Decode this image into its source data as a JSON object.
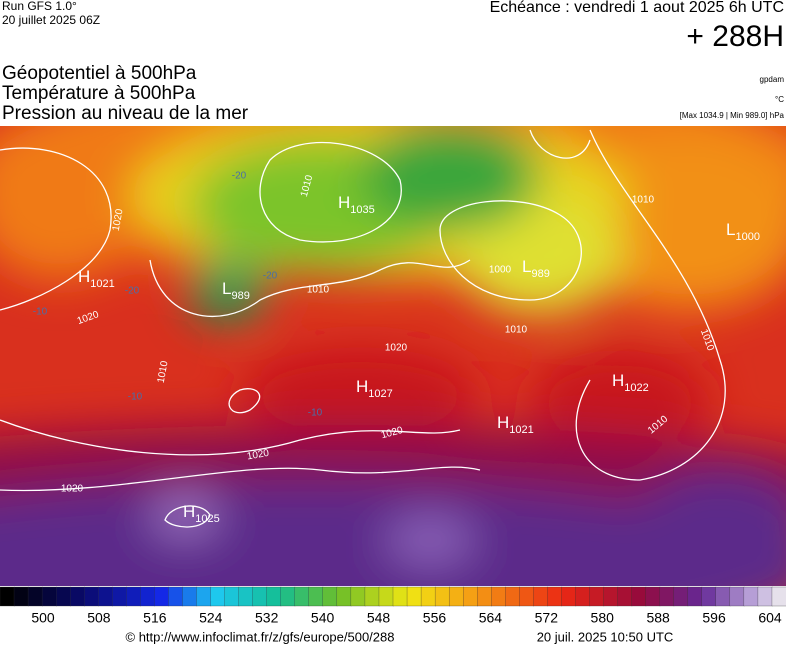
{
  "header": {
    "run": "Run GFS 1.0°",
    "run_date": "20 juillet 2025 06Z",
    "valid": "Echéance : vendredi 1 aout 2025 6h UTC",
    "lead": "+ 288H"
  },
  "titles": [
    "Géopotentiel à 500hPa",
    "Température à 500hPa",
    "Pression au niveau de la mer"
  ],
  "units": {
    "geopotential": "gpdam",
    "temperature": "°C",
    "pressure_range": "[Max 1034.9 | Min 989.0] hPa"
  },
  "centers": [
    {
      "letter": "H",
      "value": 1021
    },
    {
      "letter": "H",
      "value": 1035
    },
    {
      "letter": "L",
      "value": 989
    },
    {
      "letter": "L",
      "value": 989
    },
    {
      "letter": "L",
      "value": 1000
    },
    {
      "letter": "H",
      "value": 1027
    },
    {
      "letter": "H",
      "value": 1022
    },
    {
      "letter": "H",
      "value": 1021
    },
    {
      "letter": "H",
      "value": 1025
    }
  ],
  "isobar_labels": [
    1020,
    1020,
    1010,
    1020,
    1010,
    1020,
    1020,
    1020,
    1010,
    1000,
    1010,
    1010,
    1010,
    1010
  ],
  "temperature_labels": [
    -20,
    -20,
    -20,
    -10,
    -10,
    -10
  ],
  "colorbar": {
    "ticks": [
      500,
      508,
      516,
      524,
      532,
      540,
      548,
      556,
      564,
      572,
      580,
      588,
      596,
      604
    ]
  },
  "footer": {
    "source": "© http://www.infoclimat.fr/z/gfs/europe/500/288",
    "timestamp": "20 juil. 2025 10:50 UTC"
  }
}
